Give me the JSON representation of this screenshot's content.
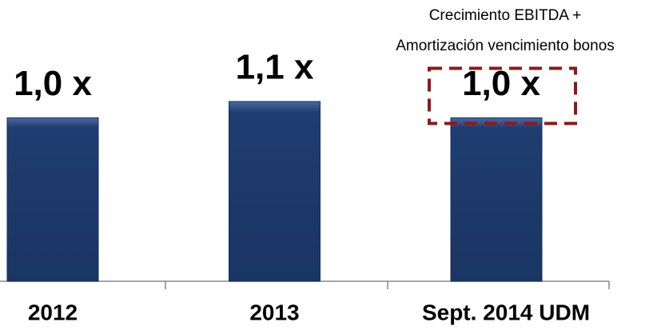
{
  "chart_data": {
    "type": "bar",
    "categories": [
      "2012",
      "2013",
      "Sept. 2014 UDM"
    ],
    "values": [
      1.0,
      1.1,
      1.0
    ],
    "value_labels": [
      "1,0 x",
      "1,1 x",
      "1,0 x"
    ],
    "color": "#1f3d70",
    "annotation": [
      "Crecimiento EBITDA +",
      "Amortización vencimiento bonos"
    ]
  }
}
